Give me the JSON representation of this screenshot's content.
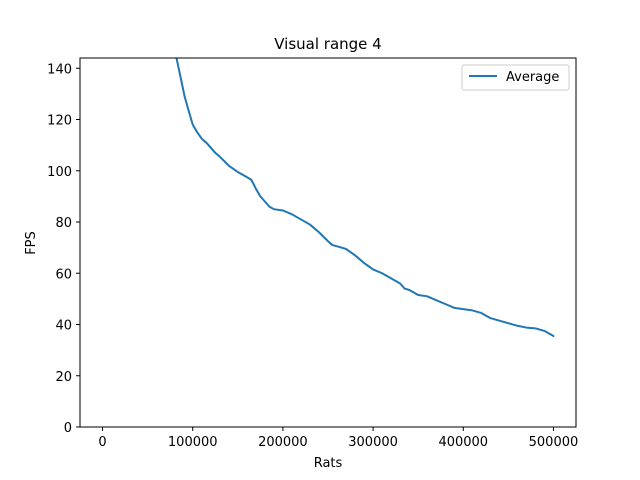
{
  "chart_data": {
    "type": "line",
    "title": "Visual range 4",
    "xlabel": "Rats",
    "ylabel": "FPS",
    "xlim": [
      -25000,
      525000
    ],
    "ylim": [
      0,
      144
    ],
    "xticks": [
      0,
      100000,
      200000,
      300000,
      400000,
      500000
    ],
    "xtick_labels": [
      "0",
      "100000",
      "200000",
      "300000",
      "400000",
      "500000"
    ],
    "yticks": [
      0,
      20,
      40,
      60,
      80,
      100,
      120,
      140
    ],
    "ytick_labels": [
      "0",
      "20",
      "40",
      "60",
      "80",
      "100",
      "120",
      "140"
    ],
    "grid": false,
    "legend": "top-right",
    "series": [
      {
        "name": "Average",
        "color": "#1f77b4",
        "x": [
          82000,
          85000,
          88000,
          91000,
          95000,
          100000,
          105000,
          110000,
          115000,
          120000,
          125000,
          130000,
          140000,
          150000,
          160000,
          165000,
          170000,
          175000,
          180000,
          185000,
          190000,
          200000,
          210000,
          220000,
          230000,
          240000,
          250000,
          255000,
          260000,
          270000,
          280000,
          290000,
          300000,
          310000,
          320000,
          330000,
          335000,
          340000,
          350000,
          360000,
          370000,
          380000,
          390000,
          400000,
          410000,
          420000,
          430000,
          440000,
          450000,
          460000,
          470000,
          480000,
          490000,
          500000
        ],
        "y": [
          144,
          139,
          134,
          129,
          124,
          118,
          115,
          112.5,
          111,
          109,
          107,
          105.5,
          102,
          99.5,
          97.5,
          96.5,
          93,
          90,
          88,
          86,
          85,
          84.5,
          83,
          81,
          79,
          76,
          72.5,
          71,
          70.5,
          69.5,
          67,
          64,
          61.5,
          60,
          58,
          56,
          54,
          53.5,
          51.5,
          51,
          49.5,
          48,
          46.5,
          46,
          45.5,
          44.5,
          42.5,
          41.5,
          40.5,
          39.5,
          38.8,
          38.5,
          37.5,
          35.5
        ]
      }
    ]
  }
}
